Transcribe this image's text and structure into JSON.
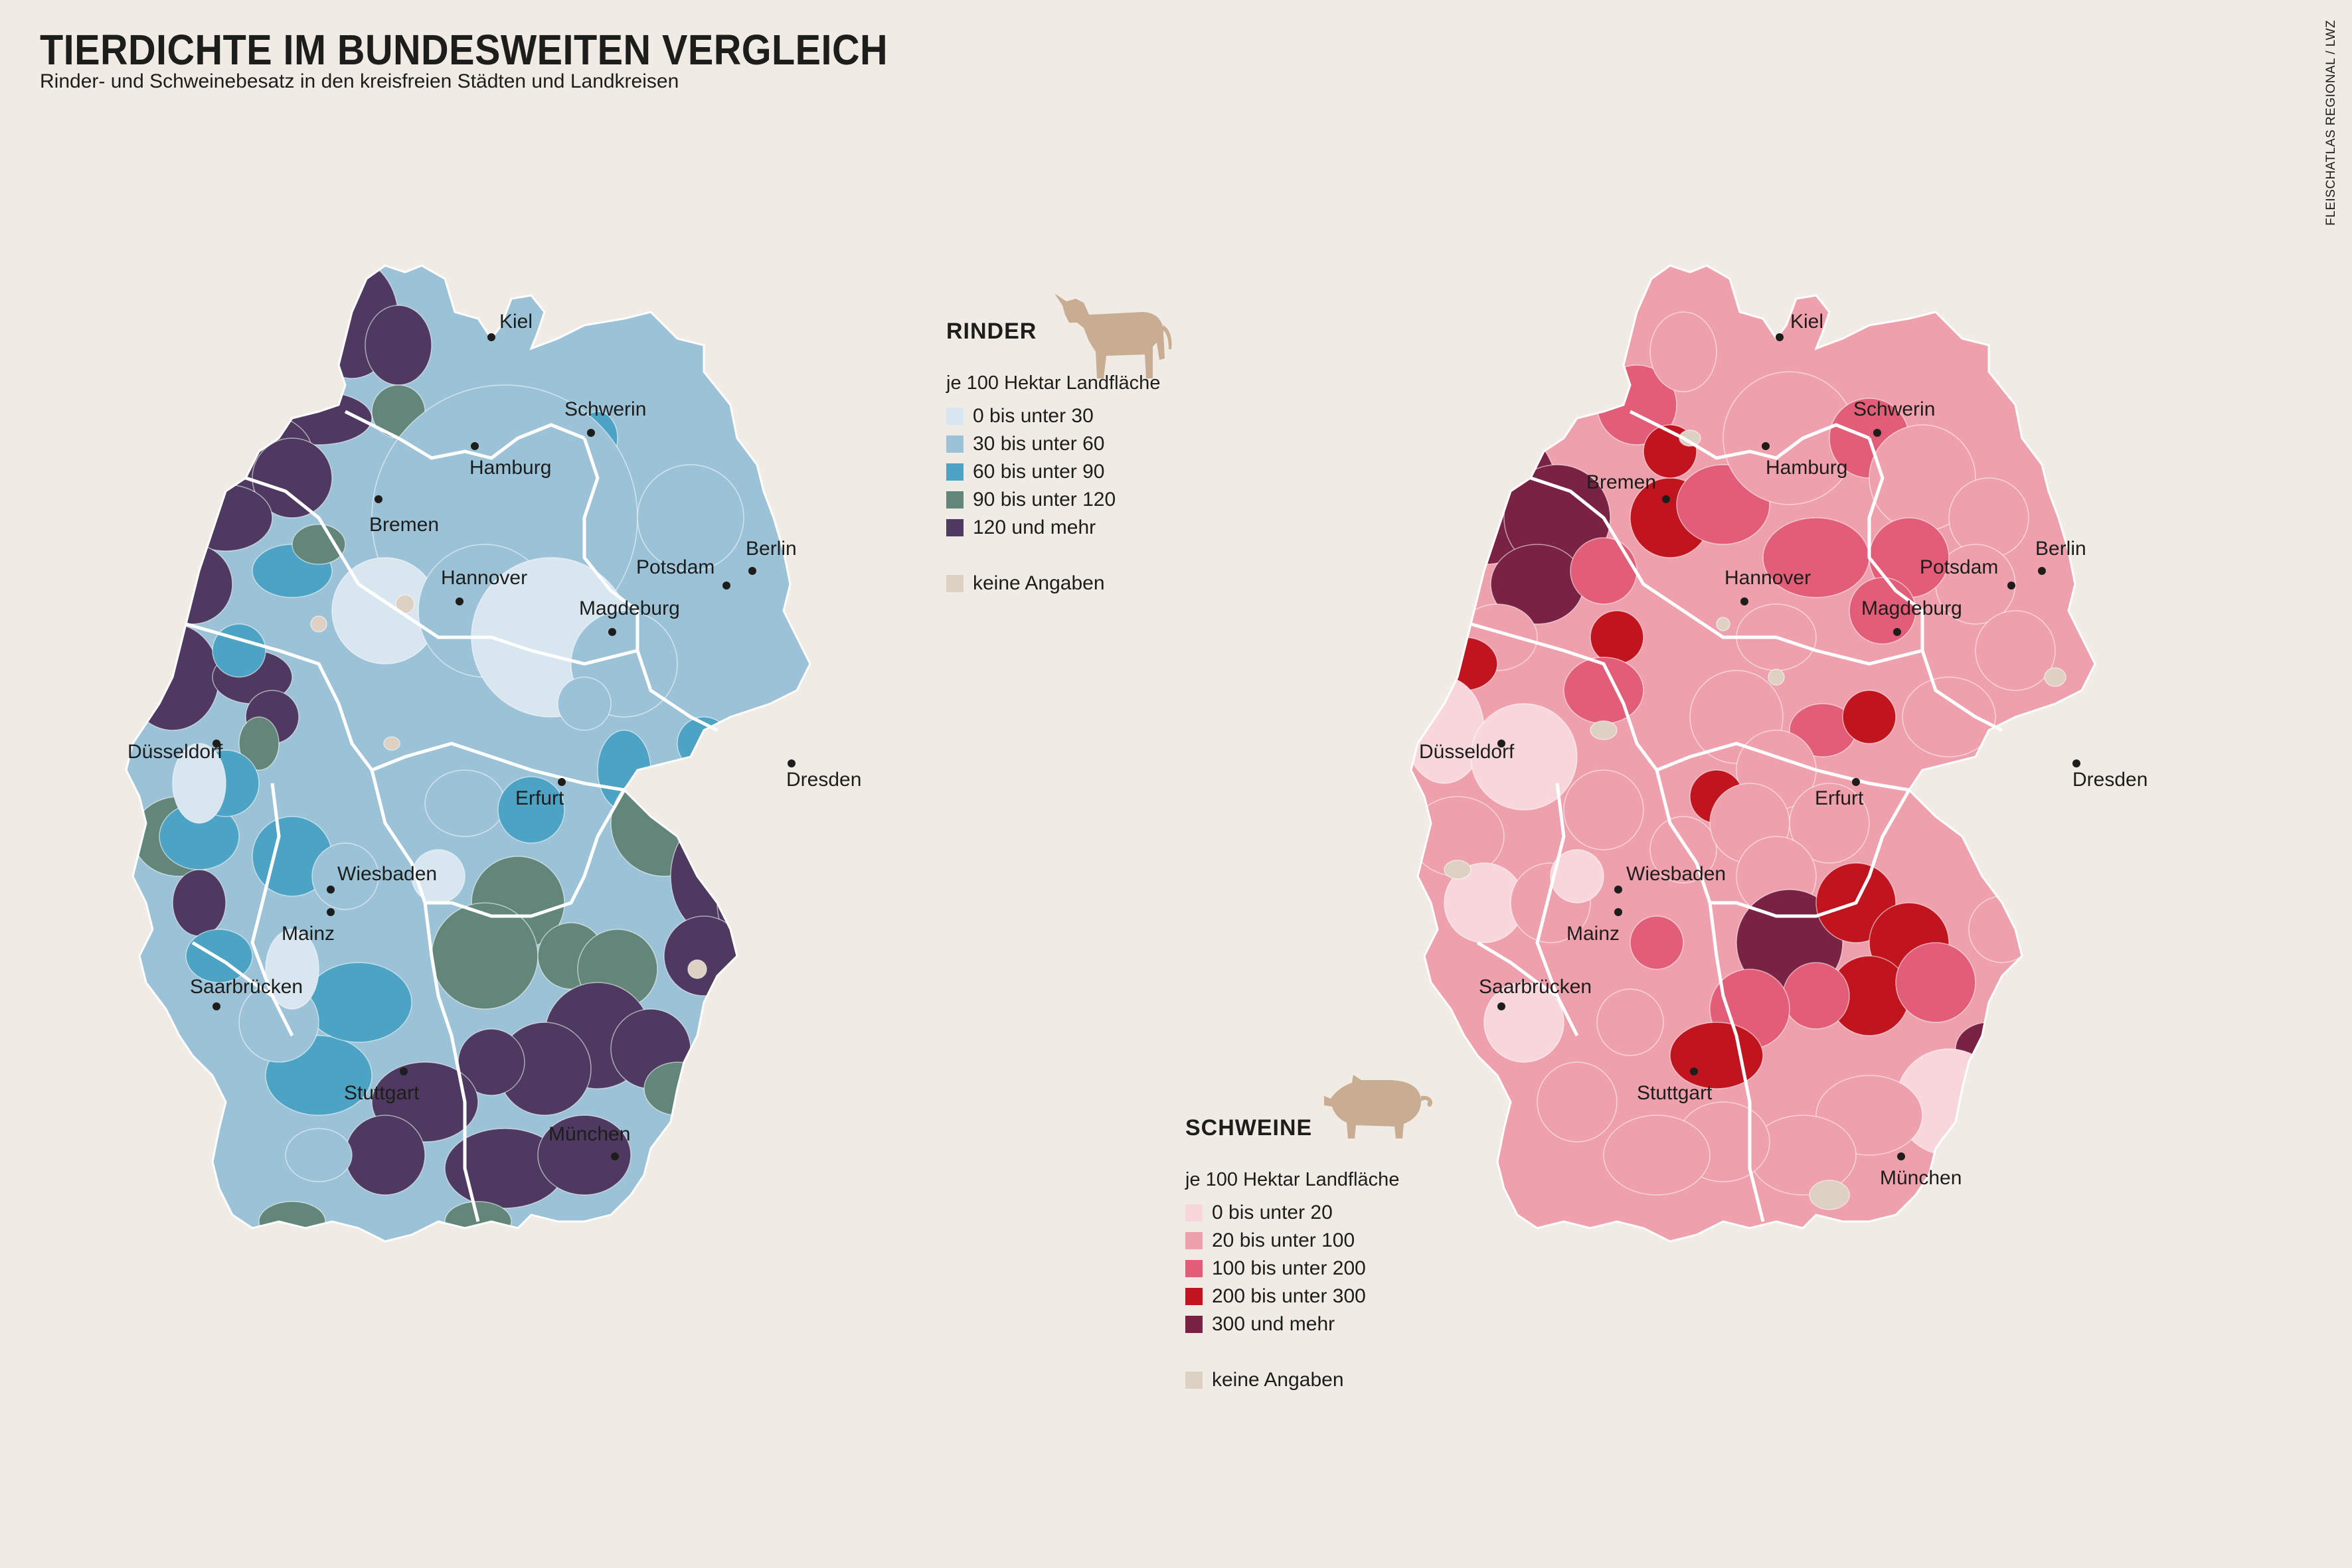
{
  "title": "TIERDICHTE IM BUNDESWEITEN VERGLEICH",
  "subtitle": "Rinder- und Schweinebesatz in den kreisfreien Städten und Landkreisen",
  "credit": "FLEISCHATLAS REGIONAL / LWZ",
  "rinder": {
    "heading": "RINDER",
    "unit": "je 100 Hektar Landfläche",
    "icon": "cow-icon",
    "classes": [
      {
        "label": "0 bis unter 30",
        "color": "#d8e6f0"
      },
      {
        "label": "30 bis unter 60",
        "color": "#9cc2d8"
      },
      {
        "label": "60 bis unter 90",
        "color": "#4da3c4"
      },
      {
        "label": "90 bis unter 120",
        "color": "#62877a"
      },
      {
        "label": "120 und mehr",
        "color": "#4e3a60"
      }
    ],
    "no_data": {
      "label": "keine Angaben",
      "color": "#dcd1c2"
    },
    "cities": [
      "Kiel",
      "Schwerin",
      "Hamburg",
      "Bremen",
      "Berlin",
      "Potsdam",
      "Hannover",
      "Magdeburg",
      "Düsseldorf",
      "Dresden",
      "Erfurt",
      "Wiesbaden",
      "Mainz",
      "Saarbrücken",
      "Stuttgart",
      "München"
    ]
  },
  "schweine": {
    "heading": "SCHWEINE",
    "unit": "je 100 Hektar Landfläche",
    "icon": "pig-icon",
    "classes": [
      {
        "label": "0 bis unter 20",
        "color": "#f7d7dc"
      },
      {
        "label": "20 bis unter 100",
        "color": "#eea0ad"
      },
      {
        "label": "100 bis unter 200",
        "color": "#e25d78"
      },
      {
        "label": "200 bis unter 300",
        "color": "#c0141f"
      },
      {
        "label": "300 und mehr",
        "color": "#7a2243"
      }
    ],
    "no_data": {
      "label": "keine Angaben",
      "color": "#dcd1c2"
    },
    "cities": [
      "Kiel",
      "Schwerin",
      "Bremen",
      "Hamburg",
      "Potsdam",
      "Berlin",
      "Hannover",
      "Magdeburg",
      "Düsseldorf",
      "Erfurt",
      "Dresden",
      "Wiesbaden",
      "Mainz",
      "Saarbrücken",
      "Stuttgart",
      "München"
    ]
  }
}
